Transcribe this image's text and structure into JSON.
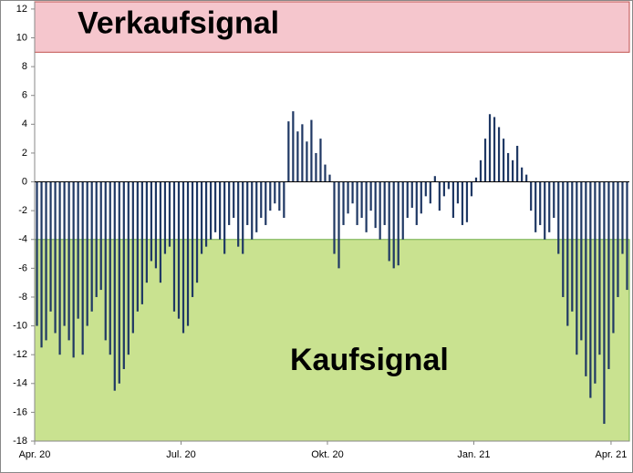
{
  "chart_data": {
    "type": "bar",
    "categories": [
      "Apr. 20",
      null,
      null,
      null,
      null,
      null,
      null,
      null,
      null,
      null,
      null,
      null,
      null,
      null,
      null,
      null,
      null,
      null,
      null,
      null,
      null,
      null,
      null,
      null,
      null,
      null,
      null,
      null,
      null,
      null,
      null,
      null,
      "Jul. 20",
      null,
      null,
      null,
      null,
      null,
      null,
      null,
      null,
      null,
      null,
      null,
      null,
      null,
      null,
      null,
      null,
      null,
      null,
      null,
      null,
      null,
      null,
      null,
      null,
      null,
      null,
      null,
      null,
      null,
      null,
      null,
      "Okt. 20",
      null,
      null,
      null,
      null,
      null,
      null,
      null,
      null,
      null,
      null,
      null,
      null,
      null,
      null,
      null,
      null,
      null,
      null,
      null,
      null,
      null,
      null,
      null,
      null,
      null,
      null,
      null,
      null,
      null,
      null,
      null,
      "Jan. 21",
      null,
      null,
      null,
      null,
      null,
      null,
      null,
      null,
      null,
      null,
      null,
      null,
      null,
      null,
      null,
      null,
      null,
      null,
      null,
      null,
      null,
      null,
      null,
      null,
      null,
      null,
      null,
      null,
      null,
      "Apr. 21",
      null,
      null,
      null
    ],
    "values": [
      -10,
      -11.5,
      -11,
      -9,
      -10.5,
      -12,
      -10,
      -11,
      -12.2,
      -9.5,
      -12,
      -10,
      -9,
      -8,
      -7.5,
      -11,
      -12,
      -14.5,
      -14,
      -13,
      -12,
      -10.5,
      -9,
      -8.5,
      -7,
      -5.5,
      -6,
      -7,
      -5,
      -4.5,
      -9,
      -9.5,
      -10.5,
      -10,
      -8,
      -7,
      -5,
      -4.5,
      -4,
      -3.5,
      -4,
      -5,
      -3,
      -2.5,
      -4.5,
      -5,
      -3,
      -4,
      -3.5,
      -2.5,
      -3,
      -2,
      -1.5,
      -2,
      -2.5,
      4.2,
      4.9,
      3.5,
      4,
      2.8,
      4.3,
      2,
      3,
      1.2,
      0.5,
      -5,
      -6,
      -3,
      -2.2,
      -1.5,
      -3,
      -2.5,
      -3.5,
      -2,
      -3.2,
      -4,
      -3,
      -5.5,
      -6,
      -5.8,
      -4,
      -2.5,
      -1.8,
      -3,
      -2.2,
      -1,
      -1.5,
      0.4,
      -2,
      -1,
      -0.5,
      -2.5,
      -1.5,
      -3,
      -2.8,
      -1,
      0.3,
      1.5,
      3,
      4.7,
      4.5,
      3.8,
      3,
      2,
      1.5,
      2.5,
      1,
      0.5,
      -2,
      -3.5,
      -3,
      -4,
      -3.5,
      -2.5,
      -5,
      -8,
      -10,
      -9,
      -12,
      -11,
      -13.5,
      -15,
      -14,
      -12,
      -16.8,
      -13,
      -10.5,
      -8,
      -5,
      -7.5
    ],
    "color": "#1f3864",
    "ylim": [
      -18,
      12.5
    ],
    "yticks": [
      -18,
      -16,
      -14,
      -12,
      -10,
      -8,
      -6,
      -4,
      -2,
      0,
      2,
      4,
      6,
      8,
      10,
      12
    ],
    "zones": [
      {
        "label": "Verkaufsignal",
        "from": 9,
        "to": 12.5,
        "color": "#f5c6cd",
        "border": "#c0504d"
      },
      {
        "label": "Kaufsignal",
        "from": -18,
        "to": -4,
        "color": "#c9e290",
        "border": "#70ad47"
      }
    ]
  }
}
